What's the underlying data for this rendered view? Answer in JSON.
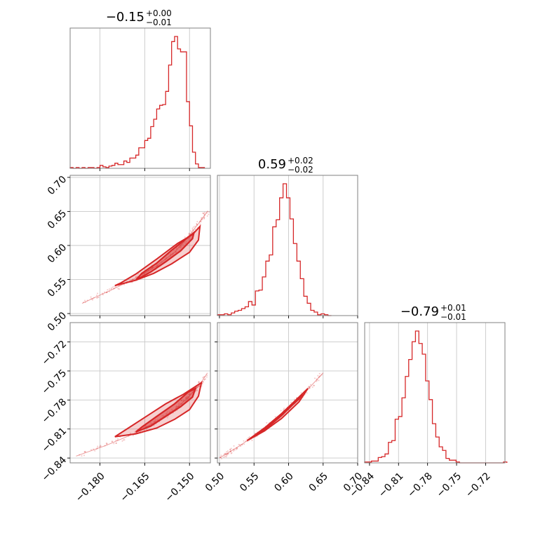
{
  "chart_data": {
    "type": "corner",
    "color": "#d62728",
    "grid": true,
    "parameters": [
      {
        "title": {
          "median": "−0.15",
          "upper": "+0.00",
          "lower": "−0.01"
        },
        "range": [
          -0.19,
          -0.143
        ],
        "ticks": [
          {
            "value": -0.18,
            "label": "−0.180"
          },
          {
            "value": -0.165,
            "label": "−0.165"
          },
          {
            "value": -0.15,
            "label": "−0.150"
          }
        ],
        "histogram": {
          "bin_width": 0.001,
          "bins": [
            {
              "x": -0.19,
              "count": 1
            },
            {
              "x": -0.189,
              "count": 0
            },
            {
              "x": -0.188,
              "count": 1
            },
            {
              "x": -0.187,
              "count": 0
            },
            {
              "x": -0.186,
              "count": 1
            },
            {
              "x": -0.185,
              "count": 0
            },
            {
              "x": -0.184,
              "count": 1
            },
            {
              "x": -0.183,
              "count": 1
            },
            {
              "x": -0.182,
              "count": 0
            },
            {
              "x": -0.181,
              "count": 1
            },
            {
              "x": -0.18,
              "count": 4
            },
            {
              "x": -0.179,
              "count": 2
            },
            {
              "x": -0.178,
              "count": 1
            },
            {
              "x": -0.177,
              "count": 3
            },
            {
              "x": -0.176,
              "count": 4
            },
            {
              "x": -0.175,
              "count": 7
            },
            {
              "x": -0.174,
              "count": 5
            },
            {
              "x": -0.173,
              "count": 5
            },
            {
              "x": -0.172,
              "count": 10
            },
            {
              "x": -0.171,
              "count": 8
            },
            {
              "x": -0.17,
              "count": 14
            },
            {
              "x": -0.169,
              "count": 14
            },
            {
              "x": -0.168,
              "count": 18
            },
            {
              "x": -0.167,
              "count": 28
            },
            {
              "x": -0.166,
              "count": 28
            },
            {
              "x": -0.165,
              "count": 38
            },
            {
              "x": -0.164,
              "count": 41
            },
            {
              "x": -0.163,
              "count": 57
            },
            {
              "x": -0.162,
              "count": 67
            },
            {
              "x": -0.161,
              "count": 81
            },
            {
              "x": -0.16,
              "count": 86
            },
            {
              "x": -0.159,
              "count": 87
            },
            {
              "x": -0.158,
              "count": 105
            },
            {
              "x": -0.157,
              "count": 141
            },
            {
              "x": -0.156,
              "count": 173
            },
            {
              "x": -0.155,
              "count": 180
            },
            {
              "x": -0.154,
              "count": 163
            },
            {
              "x": -0.153,
              "count": 159
            },
            {
              "x": -0.152,
              "count": 159
            },
            {
              "x": -0.151,
              "count": 91
            },
            {
              "x": -0.15,
              "count": 58
            },
            {
              "x": -0.149,
              "count": 22
            },
            {
              "x": -0.148,
              "count": 6
            },
            {
              "x": -0.147,
              "count": 1
            },
            {
              "x": -0.146,
              "count": 1
            }
          ]
        }
      },
      {
        "title": {
          "median": "0.59",
          "upper": "+0.02",
          "lower": "−0.02"
        },
        "range": [
          0.497,
          0.7
        ],
        "ticks": [
          {
            "value": 0.5,
            "label": "0.50"
          },
          {
            "value": 0.55,
            "label": "0.55"
          },
          {
            "value": 0.6,
            "label": "0.60"
          },
          {
            "value": 0.65,
            "label": "0.65"
          },
          {
            "value": 0.7,
            "label": "0.70"
          }
        ],
        "histogram": {
          "bin_width": 0.005,
          "bins": [
            {
              "x": 0.497,
              "count": 1
            },
            {
              "x": 0.502,
              "count": 1
            },
            {
              "x": 0.507,
              "count": 2
            },
            {
              "x": 0.512,
              "count": 1
            },
            {
              "x": 0.517,
              "count": 3
            },
            {
              "x": 0.522,
              "count": 5
            },
            {
              "x": 0.527,
              "count": 6
            },
            {
              "x": 0.532,
              "count": 8
            },
            {
              "x": 0.537,
              "count": 10
            },
            {
              "x": 0.542,
              "count": 16
            },
            {
              "x": 0.547,
              "count": 12
            },
            {
              "x": 0.552,
              "count": 28
            },
            {
              "x": 0.557,
              "count": 29
            },
            {
              "x": 0.562,
              "count": 44
            },
            {
              "x": 0.567,
              "count": 62
            },
            {
              "x": 0.572,
              "count": 69
            },
            {
              "x": 0.577,
              "count": 101
            },
            {
              "x": 0.582,
              "count": 109
            },
            {
              "x": 0.587,
              "count": 134
            },
            {
              "x": 0.592,
              "count": 150
            },
            {
              "x": 0.597,
              "count": 134
            },
            {
              "x": 0.602,
              "count": 110
            },
            {
              "x": 0.607,
              "count": 82
            },
            {
              "x": 0.612,
              "count": 62
            },
            {
              "x": 0.617,
              "count": 42
            },
            {
              "x": 0.622,
              "count": 22
            },
            {
              "x": 0.627,
              "count": 14
            },
            {
              "x": 0.632,
              "count": 6
            },
            {
              "x": 0.637,
              "count": 4
            },
            {
              "x": 0.642,
              "count": 1
            },
            {
              "x": 0.647,
              "count": 2
            },
            {
              "x": 0.652,
              "count": 1
            },
            {
              "x": 0.657,
              "count": 0
            }
          ]
        }
      },
      {
        "title": {
          "median": "−0.79",
          "upper": "+0.01",
          "lower": "−0.01"
        },
        "range": [
          -0.845,
          -0.7
        ],
        "ticks": [
          {
            "value": -0.84,
            "label": "−0.84"
          },
          {
            "value": -0.81,
            "label": "−0.81"
          },
          {
            "value": -0.78,
            "label": "−0.78"
          },
          {
            "value": -0.75,
            "label": "−0.75"
          },
          {
            "value": -0.72,
            "label": "−0.72"
          }
        ],
        "histogram": {
          "bin_width": 0.0035,
          "bins": [
            {
              "x": -0.845,
              "count": 1
            },
            {
              "x": -0.8415,
              "count": 1
            },
            {
              "x": -0.838,
              "count": 2
            },
            {
              "x": -0.8345,
              "count": 2
            },
            {
              "x": -0.831,
              "count": 6
            },
            {
              "x": -0.8275,
              "count": 7
            },
            {
              "x": -0.824,
              "count": 10
            },
            {
              "x": -0.8205,
              "count": 23
            },
            {
              "x": -0.817,
              "count": 25
            },
            {
              "x": -0.8135,
              "count": 49
            },
            {
              "x": -0.81,
              "count": 52
            },
            {
              "x": -0.8065,
              "count": 73
            },
            {
              "x": -0.803,
              "count": 97
            },
            {
              "x": -0.7995,
              "count": 116
            },
            {
              "x": -0.796,
              "count": 136
            },
            {
              "x": -0.7925,
              "count": 148
            },
            {
              "x": -0.789,
              "count": 134
            },
            {
              "x": -0.7855,
              "count": 122
            },
            {
              "x": -0.782,
              "count": 92
            },
            {
              "x": -0.7785,
              "count": 71
            },
            {
              "x": -0.775,
              "count": 44
            },
            {
              "x": -0.7715,
              "count": 29
            },
            {
              "x": -0.768,
              "count": 18
            },
            {
              "x": -0.7645,
              "count": 14
            },
            {
              "x": -0.761,
              "count": 5
            },
            {
              "x": -0.7575,
              "count": 3
            },
            {
              "x": -0.754,
              "count": 3
            },
            {
              "x": -0.7505,
              "count": 1
            },
            {
              "x": -0.747,
              "count": 0
            },
            {
              "x": -0.7435,
              "count": 0
            },
            {
              "x": -0.74,
              "count": 0
            },
            {
              "x": -0.7365,
              "count": 0
            },
            {
              "x": -0.733,
              "count": 0
            },
            {
              "x": -0.7295,
              "count": 0
            },
            {
              "x": -0.726,
              "count": 0
            },
            {
              "x": -0.7225,
              "count": 0
            },
            {
              "x": -0.719,
              "count": 0
            },
            {
              "x": -0.7155,
              "count": 0
            },
            {
              "x": -0.712,
              "count": 0
            },
            {
              "x": -0.7085,
              "count": 0
            },
            {
              "x": -0.705,
              "count": 0
            },
            {
              "x": -0.7015,
              "count": 1
            }
          ]
        }
      }
    ],
    "pairs": [
      {
        "x_param": 0,
        "y_param": 1,
        "ylim": [
          0.497,
          0.703
        ],
        "curve": [
          [
            -0.186,
            0.515
          ],
          [
            -0.176,
            0.535
          ],
          [
            -0.168,
            0.552
          ],
          [
            -0.161,
            0.57
          ],
          [
            -0.155,
            0.59
          ],
          [
            -0.151,
            0.61
          ],
          [
            -0.147,
            0.632
          ],
          [
            -0.144,
            0.65
          ]
        ],
        "contour_inner": [
          [
            -0.168,
            0.549
          ],
          [
            -0.163,
            0.561
          ],
          [
            -0.158,
            0.576
          ],
          [
            -0.153,
            0.592
          ],
          [
            -0.149,
            0.61
          ],
          [
            -0.1485,
            0.619
          ],
          [
            -0.1505,
            0.612
          ],
          [
            -0.156,
            0.593
          ],
          [
            -0.161,
            0.574
          ],
          [
            -0.166,
            0.559
          ]
        ],
        "contour_outer": [
          [
            -0.175,
            0.541
          ],
          [
            -0.168,
            0.549
          ],
          [
            -0.162,
            0.559
          ],
          [
            -0.156,
            0.573
          ],
          [
            -0.15,
            0.59
          ],
          [
            -0.147,
            0.608
          ],
          [
            -0.1465,
            0.628
          ],
          [
            -0.149,
            0.616
          ],
          [
            -0.154,
            0.603
          ],
          [
            -0.161,
            0.58
          ],
          [
            -0.168,
            0.558
          ],
          [
            -0.173,
            0.545
          ]
        ]
      },
      {
        "x_param": 0,
        "y_param": 2,
        "ylim": [
          -0.845,
          -0.7
        ],
        "curve": [
          [
            -0.188,
            -0.838
          ],
          [
            -0.178,
            -0.827
          ],
          [
            -0.168,
            -0.814
          ],
          [
            -0.161,
            -0.802
          ],
          [
            -0.155,
            -0.79
          ],
          [
            -0.151,
            -0.779
          ],
          [
            -0.147,
            -0.766
          ],
          [
            -0.144,
            -0.752
          ]
        ],
        "contour_inner": [
          [
            -0.168,
            -0.813
          ],
          [
            -0.163,
            -0.807
          ],
          [
            -0.158,
            -0.797
          ],
          [
            -0.153,
            -0.787
          ],
          [
            -0.149,
            -0.777
          ],
          [
            -0.148,
            -0.768
          ],
          [
            -0.1505,
            -0.772
          ],
          [
            -0.155,
            -0.784
          ],
          [
            -0.161,
            -0.797
          ],
          [
            -0.166,
            -0.808
          ]
        ],
        "contour_outer": [
          [
            -0.175,
            -0.818
          ],
          [
            -0.168,
            -0.815
          ],
          [
            -0.161,
            -0.809
          ],
          [
            -0.155,
            -0.8
          ],
          [
            -0.15,
            -0.79
          ],
          [
            -0.147,
            -0.776
          ],
          [
            -0.146,
            -0.762
          ],
          [
            -0.148,
            -0.766
          ],
          [
            -0.152,
            -0.774
          ],
          [
            -0.158,
            -0.784
          ],
          [
            -0.165,
            -0.798
          ],
          [
            -0.171,
            -0.81
          ]
        ]
      },
      {
        "x_param": 1,
        "y_param": 2,
        "ylim": [
          -0.845,
          -0.7
        ],
        "curve": [
          [
            0.5,
            -0.84
          ],
          [
            0.53,
            -0.827
          ],
          [
            0.56,
            -0.812
          ],
          [
            0.59,
            -0.794
          ],
          [
            0.62,
            -0.775
          ],
          [
            0.65,
            -0.752
          ]
        ],
        "contour_inner": [
          [
            0.555,
            -0.815
          ],
          [
            0.575,
            -0.804
          ],
          [
            0.595,
            -0.792
          ],
          [
            0.615,
            -0.779
          ],
          [
            0.62,
            -0.774
          ],
          [
            0.61,
            -0.782
          ],
          [
            0.59,
            -0.796
          ],
          [
            0.57,
            -0.808
          ]
        ],
        "contour_outer": [
          [
            0.54,
            -0.822
          ],
          [
            0.565,
            -0.809
          ],
          [
            0.59,
            -0.794
          ],
          [
            0.615,
            -0.777
          ],
          [
            0.628,
            -0.768
          ],
          [
            0.615,
            -0.782
          ],
          [
            0.59,
            -0.799
          ],
          [
            0.565,
            -0.812
          ]
        ]
      }
    ]
  }
}
